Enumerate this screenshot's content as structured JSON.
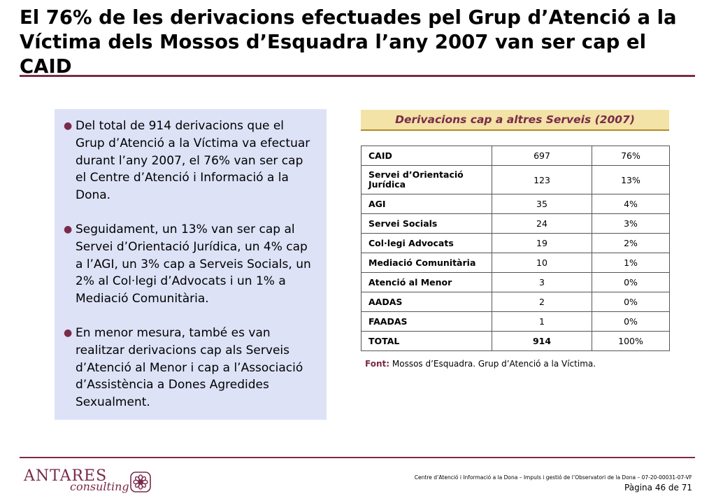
{
  "title": "El 76% de les derivacions efectuades pel Grup d’Atenció a la Víctima dels Mossos d’Esquadra l’any 2007 van ser cap el CAID",
  "bullets": [
    "Del total de 914 derivacions que el Grup d’Atenció a la Víctima va efectuar durant l’any 2007, el 76% van ser cap el Centre d’Atenció i Informació a la Dona.",
    "Seguidament, un 13% van ser cap al Servei d’Orientació Jurídica, un 4% cap a l’AGI, un 3% cap a Serveis Socials, un 2% al Col·legi d’Advocats i un 1% a Mediació Comunitària.",
    "En menor mesura, també es van realitzar derivacions cap als Serveis d’Atenció al Menor i cap a l’Associació d’Assistència a Dones Agredides Sexualment."
  ],
  "table": {
    "title": "Derivacions cap a altres Serveis (2007)",
    "rows": [
      {
        "name": "CAID",
        "count": "697",
        "pct": "76%"
      },
      {
        "name": "Servei d’Orientació Jurídica",
        "count": "123",
        "pct": "13%"
      },
      {
        "name": "AGI",
        "count": "35",
        "pct": "4%"
      },
      {
        "name": "Servei Socials",
        "count": "24",
        "pct": "3%"
      },
      {
        "name": "Col·legi Advocats",
        "count": "19",
        "pct": "2%"
      },
      {
        "name": "Mediació Comunitària",
        "count": "10",
        "pct": "1%"
      },
      {
        "name": "Atenció al Menor",
        "count": "3",
        "pct": "0%"
      },
      {
        "name": "AADAS",
        "count": "2",
        "pct": "0%"
      },
      {
        "name": "FAADAS",
        "count": "1",
        "pct": "0%"
      },
      {
        "name": "TOTAL",
        "count": "914",
        "pct": "100%"
      }
    ]
  },
  "source": {
    "label": "Font:",
    "text": "Mossos d’Esquadra. Grup d’Atenció a la Víctima."
  },
  "footer": {
    "logo_main": "ANTARES",
    "logo_sub": "consulting",
    "text": "Centre d’Atenció i Informació a la Dona – Impuls i gestió de l’Observatori de la Dona – 07-20-00031-07-VF",
    "page": "Pàgina 46 de 71"
  },
  "colors": {
    "accent": "#7a2a4a",
    "panel": "#dde2f7",
    "table_title_bg": "#f3e3a6"
  }
}
